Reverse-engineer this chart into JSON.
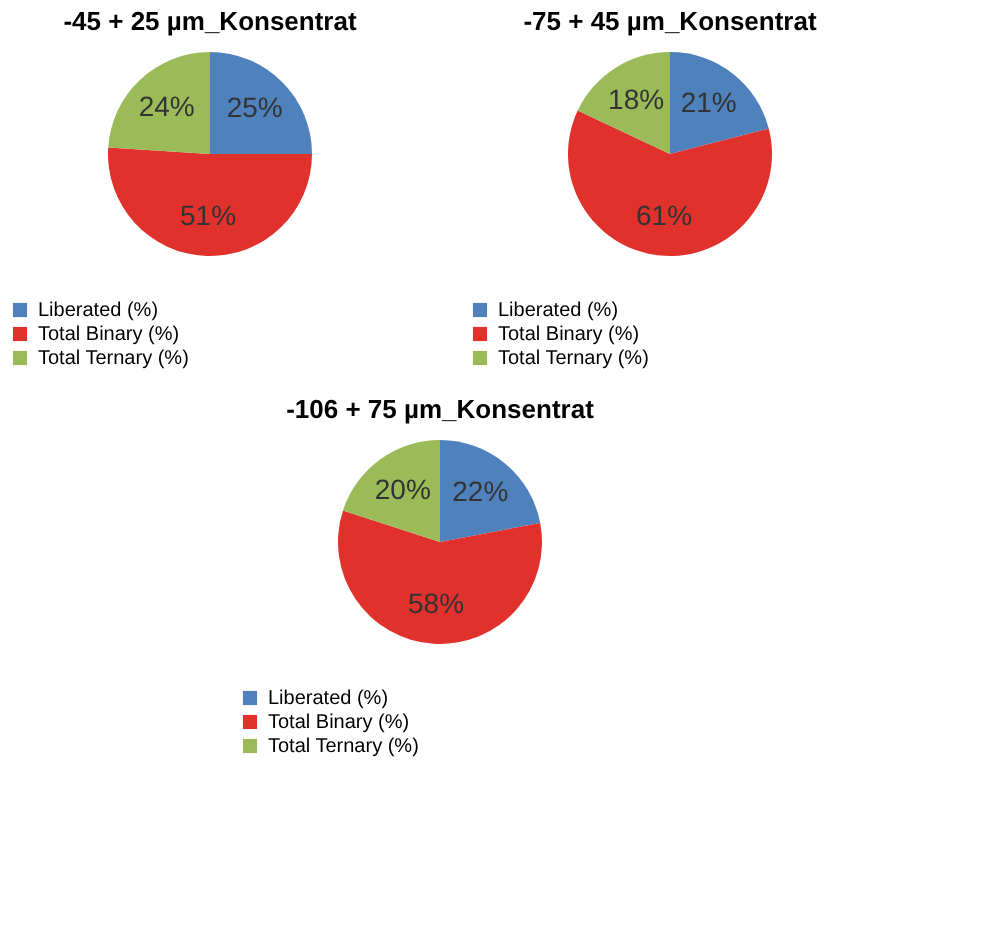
{
  "chart_data": [
    {
      "type": "pie",
      "title": "-45 + 25 µm_Konsentrat",
      "categories": [
        "Liberated (%)",
        "Total Binary (%)",
        "Total Ternary (%)"
      ],
      "values": [
        25,
        51,
        24
      ],
      "value_labels": [
        "25%",
        "51%",
        "24%"
      ],
      "colors": [
        "#4f81bd",
        "#e0312c",
        "#9bbb59"
      ],
      "legend": "bottom left"
    },
    {
      "type": "pie",
      "title": "-75 + 45 µm_Konsentrat",
      "categories": [
        "Liberated (%)",
        "Total Binary (%)",
        "Total Ternary (%)"
      ],
      "values": [
        21,
        61,
        18
      ],
      "value_labels": [
        "21%",
        "61%",
        "18%"
      ],
      "colors": [
        "#4f81bd",
        "#e0312c",
        "#9bbb59"
      ],
      "legend": "bottom left"
    },
    {
      "type": "pie",
      "title": "-106 + 75 µm_Konsentrat",
      "categories": [
        "Liberated (%)",
        "Total Binary (%)",
        "Total Ternary (%)"
      ],
      "values": [
        22,
        58,
        20
      ],
      "value_labels": [
        "22%",
        "58%",
        "20%"
      ],
      "colors": [
        "#4f81bd",
        "#e0312c",
        "#9bbb59"
      ],
      "legend": "bottom left"
    }
  ]
}
